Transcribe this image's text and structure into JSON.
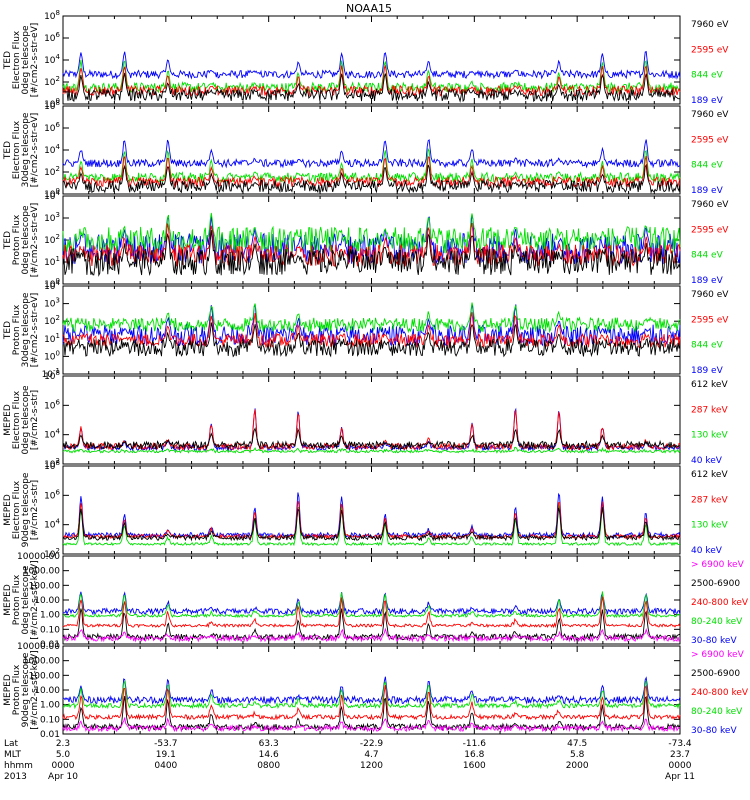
{
  "title": "NOAA15",
  "colors": {
    "black": "#000000",
    "red": "#ff0000",
    "green": "#00e000",
    "blue": "#0000ff",
    "magenta": "#ff00ff"
  },
  "time_axis": {
    "hours_range": [
      0,
      24
    ],
    "tick_hours": [
      0,
      4,
      8,
      12,
      16,
      20,
      24
    ],
    "row_labels": [
      "Lat",
      "MLT",
      "hhmm",
      "2013"
    ],
    "columns": [
      {
        "hour": 0,
        "lat": "2.3",
        "mlt": "5.0",
        "hhmm": "0000",
        "date": "Apr 10"
      },
      {
        "hour": 4,
        "lat": "-53.7",
        "mlt": "19.1",
        "hhmm": "0400",
        "date": ""
      },
      {
        "hour": 8,
        "lat": "63.3",
        "mlt": "14.6",
        "hhmm": "0800",
        "date": ""
      },
      {
        "hour": 12,
        "lat": "-22.9",
        "mlt": "4.7",
        "hhmm": "1200",
        "date": ""
      },
      {
        "hour": 16,
        "lat": "-11.6",
        "mlt": "16.8",
        "hhmm": "1600",
        "date": ""
      },
      {
        "hour": 20,
        "lat": "47.5",
        "mlt": "5.8",
        "hhmm": "2000",
        "date": ""
      },
      {
        "hour": 24,
        "lat": "-73.4",
        "mlt": "23.7",
        "hhmm": "0000",
        "date": "Apr 11"
      }
    ]
  },
  "chart_data": [
    {
      "type": "line",
      "scale": "log",
      "ylabel": [
        "TED",
        "Electron Flux",
        "0deg telescope",
        "[#/cm2-s-str-eV]"
      ],
      "ylim_exp": [
        0,
        8
      ],
      "tick_labels": [
        "10^0",
        "10^2",
        "10^4",
        "10^6",
        "10^8"
      ],
      "series": [
        {
          "name": "7960 eV",
          "color": "black",
          "base": 0.8,
          "spread": 0.55,
          "peak": 2.0
        },
        {
          "name": "2595 eV",
          "color": "red",
          "base": 1.2,
          "spread": 0.45,
          "peak": 2.4
        },
        {
          "name": "844 eV",
          "color": "green",
          "base": 1.5,
          "spread": 0.45,
          "peak": 2.6
        },
        {
          "name": "189 eV",
          "color": "blue",
          "base": 2.7,
          "spread": 0.35,
          "peak": 2.2
        }
      ]
    },
    {
      "type": "line",
      "scale": "log",
      "ylabel": [
        "TED",
        "Electron Flux",
        "30deg telescope",
        "[#/cm2-s-str-eV]"
      ],
      "ylim_exp": [
        0,
        8
      ],
      "tick_labels": [
        "10^0",
        "10^2",
        "10^4",
        "10^6",
        "10^8"
      ],
      "series": [
        {
          "name": "7960 eV",
          "color": "black",
          "base": 0.7,
          "spread": 0.55,
          "peak": 2.0
        },
        {
          "name": "2595 eV",
          "color": "red",
          "base": 1.1,
          "spread": 0.45,
          "peak": 2.5
        },
        {
          "name": "844 eV",
          "color": "green",
          "base": 1.5,
          "spread": 0.45,
          "peak": 2.7
        },
        {
          "name": "189 eV",
          "color": "blue",
          "base": 2.8,
          "spread": 0.35,
          "peak": 2.3
        }
      ]
    },
    {
      "type": "line",
      "scale": "log",
      "ylabel": [
        "TED",
        "Proton Flux",
        "0deg telescope",
        "[#/cm2-s-str-eV]"
      ],
      "ylim_exp": [
        0,
        4
      ],
      "tick_labels": [
        "10^0",
        "10^1",
        "10^2",
        "10^3",
        "10^4"
      ],
      "series": [
        {
          "name": "7960 eV",
          "color": "black",
          "base": 1.0,
          "spread": 0.6,
          "peak": 1.4
        },
        {
          "name": "2595 eV",
          "color": "red",
          "base": 1.3,
          "spread": 0.5,
          "peak": 1.5
        },
        {
          "name": "844 eV",
          "color": "green",
          "base": 2.0,
          "spread": 0.6,
          "peak": 1.2
        },
        {
          "name": "189 eV",
          "color": "blue",
          "base": 1.6,
          "spread": 0.7,
          "peak": 1.6
        }
      ]
    },
    {
      "type": "line",
      "scale": "log",
      "ylabel": [
        "TED",
        "Proton Flux",
        "30deg telescope",
        "[#/cm2-s-str-eV]"
      ],
      "ylim_exp": [
        -1,
        4
      ],
      "tick_labels": [
        "10^-1",
        "10^0",
        "10^1",
        "10^2",
        "10^3",
        "10^4"
      ],
      "series": [
        {
          "name": "7960 eV",
          "color": "black",
          "base": 0.5,
          "spread": 0.5,
          "peak": 1.4
        },
        {
          "name": "2595 eV",
          "color": "red",
          "base": 0.9,
          "spread": 0.4,
          "peak": 1.6
        },
        {
          "name": "844 eV",
          "color": "green",
          "base": 1.8,
          "spread": 0.4,
          "peak": 1.2
        },
        {
          "name": "189 eV",
          "color": "blue",
          "base": 1.2,
          "spread": 0.6,
          "peak": 1.8
        }
      ]
    },
    {
      "type": "line",
      "scale": "log",
      "ylabel": [
        "MEPED",
        "Electron Flux",
        "0deg telescope",
        "[#/cm2-s-str]"
      ],
      "ylim_exp": [
        1,
        8
      ],
      "tick_labels": [
        "10^2",
        "10^4",
        "10^6",
        "10^8"
      ],
      "series": [
        {
          "name": "612 keV",
          "color": "black",
          "base": 2.5,
          "spread": 0.3,
          "peak": 1.4
        },
        {
          "name": "287 keV",
          "color": "red",
          "base": 2.4,
          "spread": 0.25,
          "peak": 3.0
        },
        {
          "name": "130 keV",
          "color": "green",
          "base": 2.0,
          "spread": 0.1,
          "peak": 0.3
        },
        {
          "name": "40 keV",
          "color": "blue",
          "base": 2.3,
          "spread": 0.2,
          "peak": 3.2
        }
      ]
    },
    {
      "type": "line",
      "scale": "log",
      "ylabel": [
        "MEPED",
        "Electron Flux",
        "90deg telescope",
        "[#/cm2-s-str]"
      ],
      "ylim_exp": [
        1,
        8
      ],
      "tick_labels": [
        "10^2",
        "10^4",
        "10^6",
        "10^8"
      ],
      "series": [
        {
          "name": "612 keV",
          "color": "black",
          "base": 2.3,
          "spread": 0.2,
          "peak": 2.5
        },
        {
          "name": "287 keV",
          "color": "red",
          "base": 2.4,
          "spread": 0.15,
          "peak": 3.0
        },
        {
          "name": "130 keV",
          "color": "green",
          "base": 1.8,
          "spread": 0.1,
          "peak": 3.2
        },
        {
          "name": "40 keV",
          "color": "blue",
          "base": 2.5,
          "spread": 0.2,
          "peak": 3.5
        }
      ]
    },
    {
      "type": "line",
      "scale": "log",
      "ylabel": [
        "MEPED",
        "Proton Flux",
        "0deg telescope",
        "[#/cm2-s-str-keV]"
      ],
      "ylim_exp": [
        -2,
        4.2
      ],
      "tick_labels": [
        "0.01",
        "0.10",
        "1.00",
        "10.00",
        "100.00",
        "1000.00",
        "10000.00"
      ],
      "series": [
        {
          "name": "> 6900 keV",
          "color": "magenta",
          "base": -1.6,
          "spread": 0.2,
          "peak": 0.6
        },
        {
          "name": "2500-6900",
          "color": "black",
          "base": -1.5,
          "spread": 0.2,
          "peak": 2.0
        },
        {
          "name": "240-800 keV",
          "color": "red",
          "base": -0.7,
          "spread": 0.1,
          "peak": 2.0
        },
        {
          "name": "80-240 keV",
          "color": "green",
          "base": 0.0,
          "spread": 0.1,
          "peak": 1.6
        },
        {
          "name": "30-80 keV",
          "color": "blue",
          "base": 0.3,
          "spread": 0.2,
          "peak": 1.4
        }
      ]
    },
    {
      "type": "line",
      "scale": "log",
      "ylabel": [
        "MEPED",
        "Proton Flux",
        "90deg telescope",
        "[#/cm2-s-str-keV]"
      ],
      "ylim_exp": [
        -2,
        4.2
      ],
      "tick_labels": [
        "0.01",
        "0.10",
        "1.00",
        "10.00",
        "100.00",
        "1000.00",
        "10000.00"
      ],
      "series": [
        {
          "name": "> 6900 keV",
          "color": "magenta",
          "base": -1.6,
          "spread": 0.2,
          "peak": 0.7
        },
        {
          "name": "2500-6900",
          "color": "black",
          "base": -1.5,
          "spread": 0.2,
          "peak": 2.2
        },
        {
          "name": "240-800 keV",
          "color": "red",
          "base": -0.8,
          "spread": 0.15,
          "peak": 2.2
        },
        {
          "name": "80-240 keV",
          "color": "green",
          "base": 0.0,
          "spread": 0.15,
          "peak": 1.8
        },
        {
          "name": "30-80 keV",
          "color": "blue",
          "base": 0.4,
          "spread": 0.25,
          "peak": 1.6
        }
      ]
    }
  ]
}
